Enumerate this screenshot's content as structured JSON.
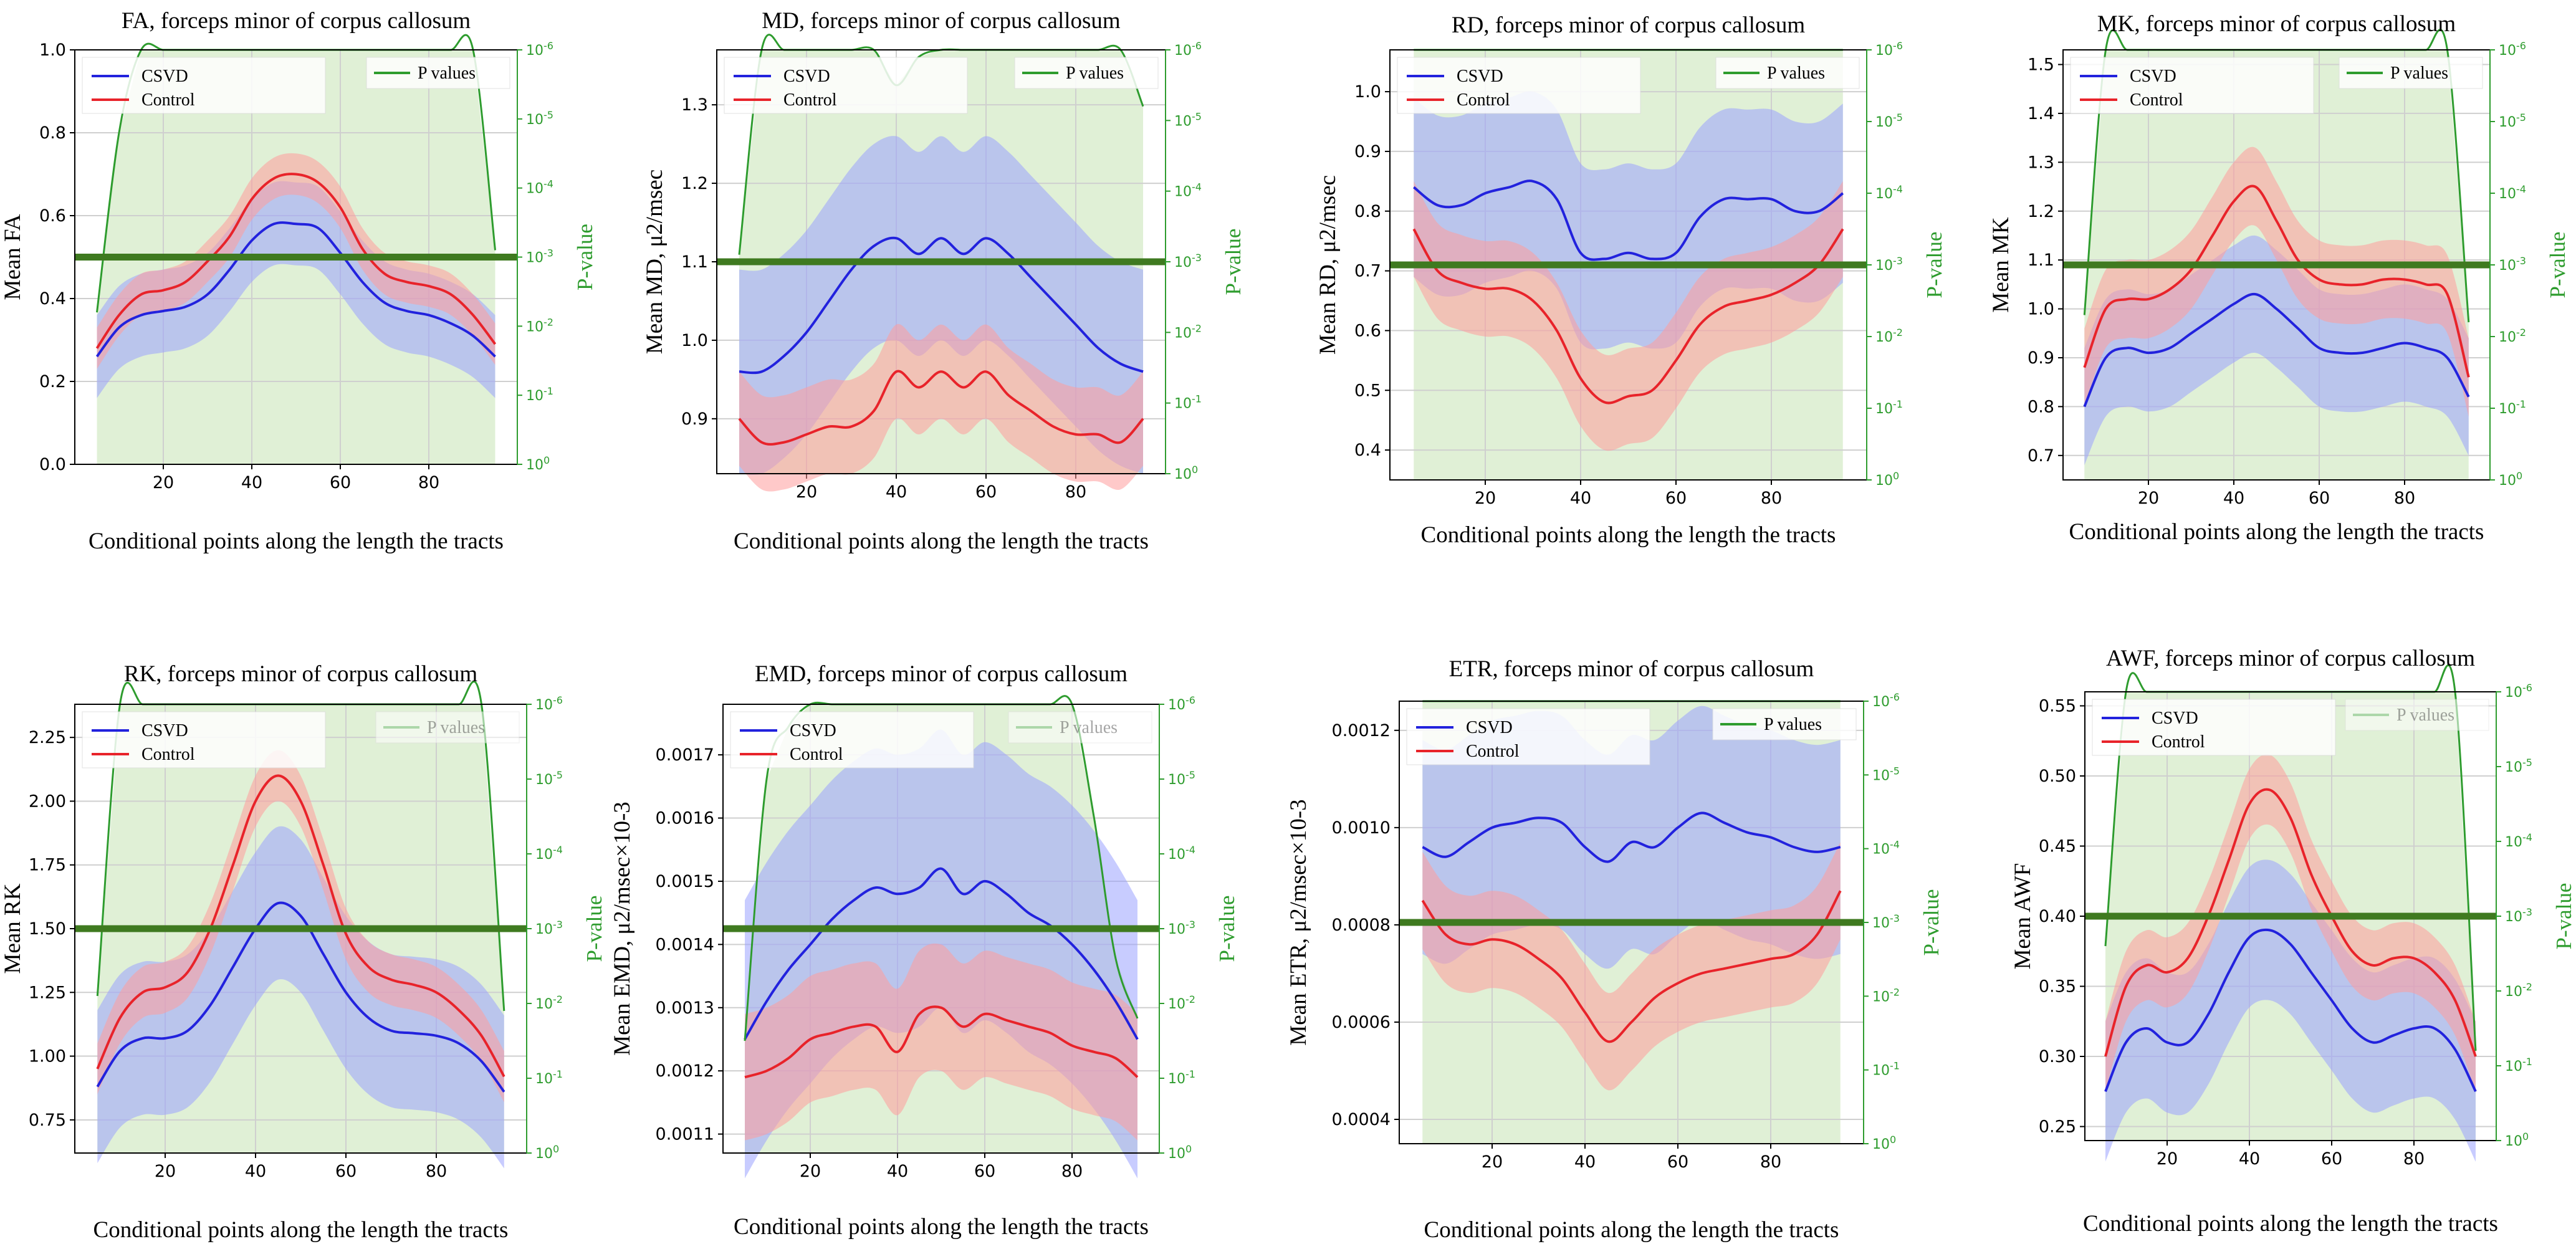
{
  "colors": {
    "csvd": "#2222dd",
    "csvd_band": "#9aa2ff",
    "control": "#e8232a",
    "control_band": "#ff9c9c",
    "pvalue": "#2e9c2e",
    "pvalue_fill": "#d6ebc8",
    "threshold": "#3f7a20"
  },
  "chart_data": [
    {
      "type": "line",
      "title": "FA, forceps minor of corpus callosum",
      "xlabel": "Conditional points along the length the tracts",
      "ylabel": "Mean FA",
      "y2label": "P-value",
      "xlim": [
        0,
        100
      ],
      "ylim": [
        0.0,
        1.0
      ],
      "xticks": [
        20,
        40,
        60,
        80
      ],
      "yticks": [
        "0.0",
        "0.2",
        "0.4",
        "0.6",
        "0.8",
        "1.0"
      ],
      "y2ticks": [
        "10^0",
        "10^-1",
        "10^-2",
        "10^-3",
        "10^-4",
        "10^-5",
        "10^-6"
      ],
      "legend": [
        "CSVD",
        "Control",
        "P values"
      ],
      "x": [
        5,
        10,
        15,
        20,
        25,
        30,
        35,
        40,
        45,
        50,
        55,
        60,
        65,
        70,
        75,
        80,
        85,
        90,
        95
      ],
      "series": [
        {
          "name": "CSVD",
          "values": [
            0.26,
            0.33,
            0.36,
            0.37,
            0.38,
            0.41,
            0.47,
            0.54,
            0.58,
            0.58,
            0.57,
            0.51,
            0.44,
            0.39,
            0.37,
            0.36,
            0.34,
            0.31,
            0.26
          ],
          "spread": 0.1
        },
        {
          "name": "Control",
          "values": [
            0.28,
            0.36,
            0.41,
            0.42,
            0.44,
            0.49,
            0.55,
            0.64,
            0.69,
            0.7,
            0.68,
            0.62,
            0.52,
            0.46,
            0.44,
            0.43,
            0.41,
            0.36,
            0.29
          ],
          "spread": 0.05
        }
      ],
      "pvalues": {
        "log10": [
          2.2,
          4.8,
          7,
          7,
          7,
          7,
          7,
          7,
          7,
          7,
          7,
          7,
          7,
          7,
          7,
          7,
          7,
          7,
          3.1
        ],
        "threshold": 3
      }
    },
    {
      "type": "line",
      "title": "MD, forceps minor of corpus callosum",
      "xlabel": "Conditional points along the length the tracts",
      "ylabel": "Mean MD, μ2/msec",
      "y2label": "P-value",
      "xlim": [
        0,
        100
      ],
      "ylim": [
        0.83,
        1.37
      ],
      "xticks": [
        20,
        40,
        60,
        80
      ],
      "yticks": [
        "0.9",
        "1.0",
        "1.1",
        "1.2",
        "1.3"
      ],
      "y2ticks": [
        "10^0",
        "10^-1",
        "10^-2",
        "10^-3",
        "10^-4",
        "10^-5",
        "10^-6"
      ],
      "legend": [
        "CSVD",
        "Control",
        "P values"
      ],
      "x": [
        5,
        10,
        15,
        20,
        25,
        30,
        35,
        40,
        45,
        50,
        55,
        60,
        65,
        70,
        75,
        80,
        85,
        90,
        95
      ],
      "series": [
        {
          "name": "CSVD",
          "values": [
            0.96,
            0.96,
            0.98,
            1.01,
            1.05,
            1.09,
            1.12,
            1.13,
            1.11,
            1.13,
            1.11,
            1.13,
            1.11,
            1.08,
            1.05,
            1.02,
            0.99,
            0.97,
            0.96
          ],
          "spread": 0.13
        },
        {
          "name": "Control",
          "values": [
            0.9,
            0.87,
            0.87,
            0.88,
            0.89,
            0.89,
            0.91,
            0.96,
            0.94,
            0.96,
            0.94,
            0.96,
            0.93,
            0.91,
            0.89,
            0.88,
            0.88,
            0.87,
            0.9
          ],
          "spread": 0.06
        }
      ],
      "pvalues": {
        "log10": [
          3.1,
          7,
          7,
          7,
          7,
          7,
          7,
          5.5,
          5.9,
          7,
          7,
          7,
          7,
          7,
          7,
          7,
          7,
          7,
          5.2
        ],
        "threshold": 3
      }
    },
    {
      "type": "line",
      "title": "RD, forceps minor of corpus callosum",
      "xlabel": "Conditional points along the length the tracts",
      "ylabel": "Mean RD, μ2/msec",
      "y2label": "P-value",
      "xlim": [
        0,
        100
      ],
      "ylim": [
        0.35,
        1.07
      ],
      "xticks": [
        20,
        40,
        60,
        80
      ],
      "yticks": [
        "0.4",
        "0.5",
        "0.6",
        "0.7",
        "0.8",
        "0.9",
        "1.0"
      ],
      "y2ticks": [
        "10^0",
        "10^-1",
        "10^-2",
        "10^-3",
        "10^-4",
        "10^-5",
        "10^-6"
      ],
      "legend": [
        "CSVD",
        "Control",
        "P values"
      ],
      "x": [
        5,
        10,
        15,
        20,
        25,
        30,
        35,
        40,
        45,
        50,
        55,
        60,
        65,
        70,
        75,
        80,
        85,
        90,
        95
      ],
      "series": [
        {
          "name": "CSVD",
          "values": [
            0.84,
            0.81,
            0.81,
            0.83,
            0.84,
            0.85,
            0.82,
            0.73,
            0.72,
            0.73,
            0.72,
            0.73,
            0.79,
            0.82,
            0.82,
            0.82,
            0.8,
            0.8,
            0.83
          ],
          "spread": 0.15
        },
        {
          "name": "Control",
          "values": [
            0.77,
            0.7,
            0.68,
            0.67,
            0.67,
            0.65,
            0.6,
            0.52,
            0.48,
            0.49,
            0.5,
            0.55,
            0.61,
            0.64,
            0.65,
            0.66,
            0.68,
            0.71,
            0.77
          ],
          "spread": 0.08
        }
      ],
      "pvalues": {
        "log10": [
          7,
          7,
          7,
          7,
          7,
          7,
          7,
          7,
          7,
          7,
          7,
          7,
          7,
          7,
          7,
          7,
          7,
          7,
          7
        ],
        "threshold": 3
      }
    },
    {
      "type": "line",
      "title": "MK, forceps minor of corpus callosum",
      "xlabel": "Conditional points along the length the tracts",
      "ylabel": "Mean MK",
      "y2label": "P-value",
      "xlim": [
        0,
        100
      ],
      "ylim": [
        0.65,
        1.53
      ],
      "xticks": [
        20,
        40,
        60,
        80
      ],
      "yticks": [
        "0.7",
        "0.8",
        "0.9",
        "1.0",
        "1.1",
        "1.2",
        "1.3",
        "1.4",
        "1.5"
      ],
      "y2ticks": [
        "10^0",
        "10^-1",
        "10^-2",
        "10^-3",
        "10^-4",
        "10^-5",
        "10^-6"
      ],
      "legend": [
        "CSVD",
        "Control",
        "P values"
      ],
      "x": [
        5,
        10,
        15,
        20,
        25,
        30,
        35,
        40,
        45,
        50,
        55,
        60,
        65,
        70,
        75,
        80,
        85,
        90,
        95
      ],
      "series": [
        {
          "name": "CSVD",
          "values": [
            0.8,
            0.9,
            0.92,
            0.91,
            0.92,
            0.95,
            0.98,
            1.01,
            1.03,
            1.0,
            0.96,
            0.92,
            0.91,
            0.91,
            0.92,
            0.93,
            0.92,
            0.9,
            0.82
          ],
          "spread": 0.12
        },
        {
          "name": "Control",
          "values": [
            0.88,
            1.0,
            1.02,
            1.02,
            1.04,
            1.08,
            1.15,
            1.22,
            1.25,
            1.18,
            1.1,
            1.06,
            1.05,
            1.05,
            1.06,
            1.06,
            1.05,
            1.03,
            0.86
          ],
          "spread": 0.08
        }
      ],
      "pvalues": {
        "log10": [
          2.3,
          7,
          7,
          7,
          7,
          7,
          7,
          7,
          7,
          7,
          7,
          7,
          7,
          7,
          7,
          7,
          7,
          7,
          2.2
        ],
        "threshold": 3
      }
    },
    {
      "type": "line",
      "title": "RK, forceps minor of corpus callosum",
      "xlabel": "Conditional points along the length the tracts",
      "ylabel": "Mean RK",
      "y2label": "P-value",
      "xlim": [
        0,
        100
      ],
      "ylim": [
        0.62,
        2.38
      ],
      "xticks": [
        20,
        40,
        60,
        80
      ],
      "yticks": [
        "0.75",
        "1.00",
        "1.25",
        "1.50",
        "1.75",
        "2.00",
        "2.25"
      ],
      "y2ticks": [
        "10^0",
        "10^-1",
        "10^-2",
        "10^-3",
        "10^-4",
        "10^-5",
        "10^-6"
      ],
      "legend": [
        "CSVD",
        "Control",
        "P values"
      ],
      "x": [
        5,
        10,
        15,
        20,
        25,
        30,
        35,
        40,
        45,
        50,
        55,
        60,
        65,
        70,
        75,
        80,
        85,
        90,
        95
      ],
      "series": [
        {
          "name": "CSVD",
          "values": [
            0.88,
            1.02,
            1.07,
            1.07,
            1.1,
            1.2,
            1.35,
            1.5,
            1.6,
            1.55,
            1.4,
            1.25,
            1.15,
            1.1,
            1.09,
            1.08,
            1.05,
            0.98,
            0.86
          ],
          "spread": 0.3
        },
        {
          "name": "Control",
          "values": [
            0.95,
            1.15,
            1.25,
            1.27,
            1.33,
            1.5,
            1.75,
            2.0,
            2.1,
            2.0,
            1.75,
            1.48,
            1.35,
            1.3,
            1.28,
            1.25,
            1.18,
            1.08,
            0.92
          ],
          "spread": 0.1
        }
      ],
      "pvalues": {
        "log10": [
          2.1,
          7,
          7,
          7,
          7,
          7,
          7,
          7,
          7,
          7,
          7,
          7,
          7,
          7,
          7,
          7,
          7,
          7,
          1.9
        ],
        "threshold": 3
      }
    },
    {
      "type": "line",
      "title": "EMD, forceps minor of corpus callosum",
      "xlabel": "Conditional points along the length the tracts",
      "ylabel": "Mean EMD, μ2/msec×10-3",
      "y2label": "P-value",
      "xlim": [
        0,
        100
      ],
      "ylim": [
        0.00107,
        0.00178
      ],
      "xticks": [
        20,
        40,
        60,
        80
      ],
      "yticks": [
        "0.0011",
        "0.0012",
        "0.0013",
        "0.0014",
        "0.0015",
        "0.0016",
        "0.0017"
      ],
      "y2ticks": [
        "10^0",
        "10^-1",
        "10^-2",
        "10^-3",
        "10^-4",
        "10^-5",
        "10^-6"
      ],
      "legend": [
        "CSVD",
        "Control",
        "P values"
      ],
      "x": [
        5,
        10,
        15,
        20,
        25,
        30,
        35,
        40,
        45,
        50,
        55,
        60,
        65,
        70,
        75,
        80,
        85,
        90,
        95
      ],
      "series": [
        {
          "name": "CSVD",
          "values": [
            0.00125,
            0.00131,
            0.00136,
            0.0014,
            0.00144,
            0.00147,
            0.00149,
            0.00148,
            0.00149,
            0.00152,
            0.00148,
            0.0015,
            0.00148,
            0.00145,
            0.00143,
            0.0014,
            0.00136,
            0.00131,
            0.00125
          ],
          "spread": 0.00022
        },
        {
          "name": "Control",
          "values": [
            0.00119,
            0.0012,
            0.00122,
            0.00125,
            0.00126,
            0.00127,
            0.00127,
            0.00123,
            0.00129,
            0.0013,
            0.00127,
            0.00129,
            0.00128,
            0.00127,
            0.00126,
            0.00124,
            0.00123,
            0.00122,
            0.00119
          ],
          "spread": 0.0001
        }
      ],
      "pvalues": {
        "log10": [
          1.5,
          5.0,
          5.7,
          7,
          7,
          7,
          7,
          7,
          7,
          7,
          7,
          7,
          7,
          7,
          7,
          7,
          4.5,
          2.6,
          1.8
        ],
        "threshold": 3
      }
    },
    {
      "type": "line",
      "title": "ETR, forceps minor of corpus callosum",
      "xlabel": "Conditional points along the length the tracts",
      "ylabel": "Mean ETR, μ2/msec×10-3",
      "y2label": "P-value",
      "xlim": [
        0,
        100
      ],
      "ylim": [
        0.00035,
        0.00126
      ],
      "xticks": [
        20,
        40,
        60,
        80
      ],
      "yticks": [
        "0.0004",
        "0.0006",
        "0.0008",
        "0.0010",
        "0.0012"
      ],
      "y2ticks": [
        "10^0",
        "10^-1",
        "10^-2",
        "10^-3",
        "10^-4",
        "10^-5",
        "10^-6"
      ],
      "legend": [
        "CSVD",
        "Control",
        "P values"
      ],
      "x": [
        5,
        10,
        15,
        20,
        25,
        30,
        35,
        40,
        45,
        50,
        55,
        60,
        65,
        70,
        75,
        80,
        85,
        90,
        95
      ],
      "series": [
        {
          "name": "CSVD",
          "values": [
            0.00096,
            0.00094,
            0.00097,
            0.001,
            0.00101,
            0.00102,
            0.00101,
            0.00096,
            0.00093,
            0.00097,
            0.00096,
            0.001,
            0.00103,
            0.00101,
            0.00099,
            0.00098,
            0.00096,
            0.00095,
            0.00096
          ],
          "spread": 0.00022
        },
        {
          "name": "Control",
          "values": [
            0.00085,
            0.00078,
            0.00076,
            0.00077,
            0.00076,
            0.00073,
            0.00069,
            0.00062,
            0.00056,
            0.0006,
            0.00065,
            0.00068,
            0.0007,
            0.00071,
            0.00072,
            0.00073,
            0.00074,
            0.00078,
            0.00087
          ],
          "spread": 0.0001
        }
      ],
      "pvalues": {
        "log10": [
          7,
          7,
          7,
          7,
          7,
          7,
          7,
          7,
          7,
          7,
          7,
          7,
          7,
          7,
          7,
          7,
          7,
          7,
          7
        ],
        "threshold": 3
      }
    },
    {
      "type": "line",
      "title": "AWF, forceps minor of corpus callosum",
      "xlabel": "Conditional points along the length the tracts",
      "ylabel": "Mean AWF",
      "y2label": "P-value",
      "xlim": [
        0,
        100
      ],
      "ylim": [
        0.24,
        0.56
      ],
      "xticks": [
        20,
        40,
        60,
        80
      ],
      "yticks": [
        "0.25",
        "0.30",
        "0.35",
        "0.40",
        "0.45",
        "0.50",
        "0.55"
      ],
      "y2ticks": [
        "10^0",
        "10^-1",
        "10^-2",
        "10^-3",
        "10^-4",
        "10^-5",
        "10^-6"
      ],
      "legend": [
        "CSVD",
        "Control",
        "P values"
      ],
      "x": [
        5,
        10,
        15,
        20,
        25,
        30,
        35,
        40,
        45,
        50,
        55,
        60,
        65,
        70,
        75,
        80,
        85,
        90,
        95
      ],
      "series": [
        {
          "name": "CSVD",
          "values": [
            0.275,
            0.31,
            0.32,
            0.31,
            0.31,
            0.33,
            0.36,
            0.385,
            0.39,
            0.38,
            0.36,
            0.34,
            0.32,
            0.31,
            0.315,
            0.32,
            0.32,
            0.305,
            0.275
          ],
          "spread": 0.05
        },
        {
          "name": "Control",
          "values": [
            0.3,
            0.35,
            0.365,
            0.36,
            0.37,
            0.4,
            0.44,
            0.48,
            0.49,
            0.47,
            0.43,
            0.4,
            0.375,
            0.365,
            0.37,
            0.37,
            0.36,
            0.34,
            0.3
          ],
          "spread": 0.025
        }
      ],
      "pvalues": {
        "log10": [
          2.6,
          7,
          7,
          7,
          7,
          7,
          7,
          7,
          7,
          7,
          7,
          7,
          7,
          7,
          7,
          7,
          7,
          7,
          1.2
        ],
        "threshold": 3
      }
    }
  ]
}
